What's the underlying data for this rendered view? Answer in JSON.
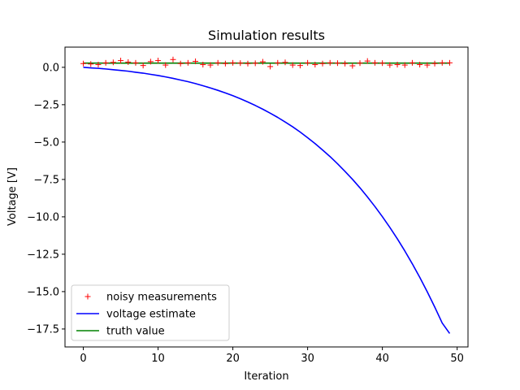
{
  "chart_data": {
    "type": "line",
    "title": "Simulation results",
    "xlabel": "Iteration",
    "ylabel": "Voltage [V]",
    "xlim": [
      -2.45,
      51.45
    ],
    "ylim": [
      -18.7,
      1.35
    ],
    "xticks": [
      0,
      10,
      20,
      30,
      40,
      50
    ],
    "yticks": [
      0.0,
      -2.5,
      -5.0,
      -7.5,
      -10.0,
      -12.5,
      -15.0,
      -17.5
    ],
    "ytick_labels": [
      "0.0",
      "−2.5",
      "−5.0",
      "−7.5",
      "−10.0",
      "−12.5",
      "−15.0",
      "−17.5"
    ],
    "grid": false,
    "legend_position": "lower-left",
    "series": [
      {
        "name": "noisy measurements",
        "style": "marker-plus",
        "color": "#ff0000",
        "x": [
          0,
          1,
          2,
          3,
          4,
          5,
          6,
          7,
          8,
          9,
          10,
          11,
          12,
          13,
          14,
          15,
          16,
          17,
          18,
          19,
          20,
          21,
          22,
          23,
          24,
          25,
          26,
          27,
          28,
          29,
          30,
          31,
          32,
          33,
          34,
          35,
          36,
          37,
          38,
          39,
          40,
          41,
          42,
          43,
          44,
          45,
          46,
          47,
          48,
          49
        ],
        "values": [
          0.25,
          0.22,
          0.18,
          0.3,
          0.33,
          0.45,
          0.35,
          0.3,
          0.12,
          0.38,
          0.45,
          0.15,
          0.52,
          0.25,
          0.3,
          0.4,
          0.18,
          0.15,
          0.3,
          0.25,
          0.3,
          0.28,
          0.25,
          0.27,
          0.37,
          0.05,
          0.3,
          0.33,
          0.15,
          0.12,
          0.3,
          0.18,
          0.25,
          0.3,
          0.28,
          0.25,
          0.1,
          0.28,
          0.42,
          0.3,
          0.28,
          0.15,
          0.18,
          0.15,
          0.3,
          0.18,
          0.15,
          0.25,
          0.3,
          0.3
        ]
      },
      {
        "name": "voltage estimate",
        "style": "line",
        "color": "#0000ff",
        "x": [
          0,
          1,
          2,
          3,
          4,
          5,
          6,
          7,
          8,
          9,
          10,
          11,
          12,
          13,
          14,
          15,
          16,
          17,
          18,
          19,
          20,
          21,
          22,
          23,
          24,
          25,
          26,
          27,
          28,
          29,
          30,
          31,
          32,
          33,
          34,
          35,
          36,
          37,
          38,
          39,
          40,
          41,
          42,
          43,
          44,
          45,
          46,
          47,
          48,
          49
        ],
        "values": [
          0.0,
          -0.04,
          -0.07,
          -0.11,
          -0.16,
          -0.21,
          -0.26,
          -0.33,
          -0.39,
          -0.47,
          -0.55,
          -0.64,
          -0.74,
          -0.85,
          -0.96,
          -1.09,
          -1.23,
          -1.38,
          -1.54,
          -1.71,
          -1.9,
          -2.1,
          -2.32,
          -2.55,
          -2.8,
          -3.07,
          -3.35,
          -3.66,
          -3.98,
          -4.33,
          -4.71,
          -5.1,
          -5.53,
          -5.97,
          -6.45,
          -6.96,
          -7.49,
          -8.06,
          -8.67,
          -9.31,
          -9.99,
          -10.71,
          -11.47,
          -12.28,
          -13.14,
          -14.05,
          -15.01,
          -16.03,
          -17.1,
          -17.8
        ]
      },
      {
        "name": "truth value",
        "style": "line",
        "color": "#008000",
        "x": [
          0,
          49
        ],
        "values": [
          0.28,
          0.28
        ]
      }
    ]
  }
}
